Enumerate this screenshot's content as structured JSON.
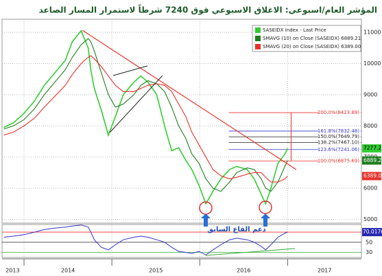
{
  "chart_data": [
    {
      "type": "line",
      "title": "المؤشر العام/اسبوعي: الاغلاق الاسبوعي فوق 7240 شرطاً لاستمرار المسار الصاعد",
      "annotation": "دعم القاع السابق",
      "x": [
        2013.77,
        2013.88,
        2014.0,
        2014.12,
        2014.23,
        2014.35,
        2014.47,
        2014.55,
        2014.65,
        2014.73,
        2014.76,
        2014.8,
        2014.88,
        2014.96,
        2015.04,
        2015.13,
        2015.25,
        2015.33,
        2015.41,
        2015.51,
        2015.6,
        2015.68,
        2015.76,
        2015.84,
        2015.91,
        2015.99,
        2016.07,
        2016.15,
        2016.24,
        2016.34,
        2016.42,
        2016.54,
        2016.62,
        2016.7,
        2016.75,
        2016.81,
        2016.89,
        2016.97,
        2017.0
      ],
      "series": [
        {
          "name": "SASEIDX Index - Last Price",
          "color": "#33cc33",
          "values": [
            7950,
            8100,
            8400,
            8800,
            9300,
            9700,
            10100,
            10700,
            11050,
            10500,
            9800,
            9200,
            8500,
            7700,
            8300,
            9000,
            9400,
            9600,
            9400,
            9000,
            8000,
            7200,
            7300,
            6900,
            6600,
            6100,
            5500,
            5900,
            6300,
            6600,
            6700,
            6600,
            6300,
            5800,
            5500,
            6000,
            6800,
            7100,
            7277.25
          ]
        },
        {
          "name": "SMAVG (10) on Close (SASEIDX) 6889.21",
          "color": "#1e7d1e",
          "values": [
            7900,
            8000,
            8200,
            8550,
            9000,
            9400,
            9800,
            10200,
            10600,
            10800,
            10700,
            10400,
            9700,
            9000,
            8600,
            8700,
            9000,
            9300,
            9450,
            9350,
            9100,
            8600,
            8000,
            7600,
            7100,
            6800,
            6300,
            6000,
            5900,
            6200,
            6500,
            6650,
            6600,
            6300,
            6000,
            5900,
            6200,
            6700,
            6889.21
          ]
        },
        {
          "name": "SMAVG (20) on Close (SASEIDX) 6389.00",
          "color": "#e8302a",
          "last_label": "6389.00",
          "values": [
            7700,
            7800,
            8000,
            8250,
            8600,
            8950,
            9300,
            9650,
            10000,
            10200,
            10250,
            10150,
            9900,
            9600,
            9300,
            9100,
            9100,
            9200,
            9300,
            9350,
            9300,
            9100,
            8700,
            8300,
            7800,
            7400,
            7000,
            6600,
            6400,
            6300,
            6350,
            6450,
            6500,
            6500,
            6350,
            6200,
            6200,
            6300,
            6389
          ]
        }
      ],
      "levels": [
        {
          "value": 8423.89,
          "label": "200.0%(8423.89)",
          "color": "#e8302a"
        },
        {
          "value": 7832.48,
          "label": "161.8%(7832.48)",
          "color": "#3333cc"
        },
        {
          "value": 7649.79,
          "label": "150.0%(7649.79)",
          "color": "#222222"
        },
        {
          "value": 7467.1,
          "label": "138.2%(7467.10)",
          "color": "#222222"
        },
        {
          "value": 7241.06,
          "label": "123.6%(7241.06)",
          "color": "#3333cc"
        },
        {
          "value": 6875.69,
          "label": "100.0%(6875.69)",
          "color": "#e8302a"
        }
      ],
      "xlim": [
        2013.75,
        2017.84
      ],
      "xticks": [
        2014,
        2015,
        2016,
        2017
      ],
      "year_labels": [
        "2013",
        "2014",
        "2015",
        "2016",
        "2017"
      ],
      "ylim": [
        4880,
        11420
      ],
      "yticks": [
        5000,
        6000,
        7000,
        8000,
        9000,
        10000,
        11000
      ],
      "grid": true,
      "legend": "top-right"
    },
    {
      "type": "line",
      "series": [
        {
          "color": "#3333cc",
          "values": [
            60,
            62,
            65,
            70,
            75,
            78,
            80,
            82,
            84,
            80,
            70,
            55,
            40,
            35,
            45,
            55,
            60,
            62,
            60,
            55,
            50,
            40,
            32,
            30,
            28,
            32,
            25,
            35,
            45,
            55,
            58,
            55,
            50,
            42,
            35,
            45,
            60,
            68,
            70.0176
          ]
        }
      ],
      "ylim": [
        20,
        85
      ],
      "yticks": [
        50,
        30
      ],
      "bands": [
        {
          "value": 70,
          "color": "#e8302a"
        },
        {
          "value": 50,
          "color": "#222222"
        },
        {
          "value": 30,
          "color": "#33aa33"
        }
      ]
    }
  ]
}
